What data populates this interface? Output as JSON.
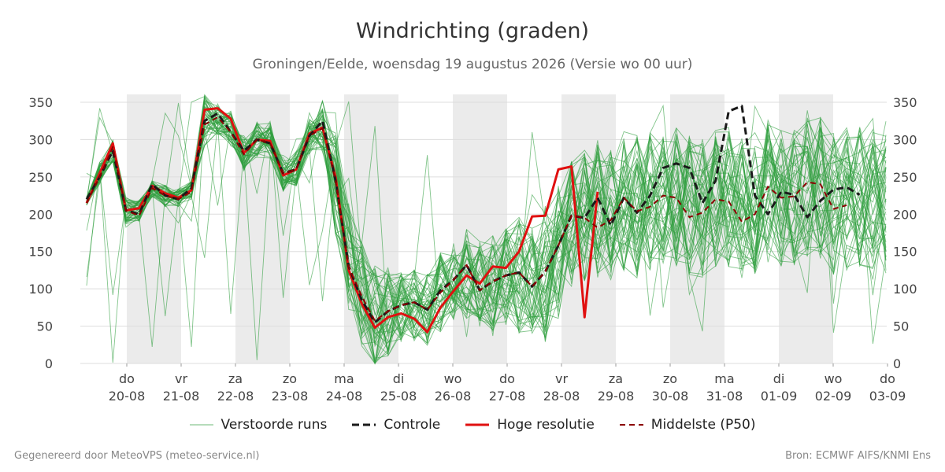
{
  "title": "Windrichting (graden)",
  "subtitle": "Groningen/Eelde, woensdag 19 augustus 2026 (Versie wo 00 uur)",
  "footer_left": "Gegenereerd door MeteoVPS (meteo-service.nl)",
  "footer_right": "Bron: ECMWF AIFS/KNMI Ens",
  "legend": [
    {
      "label": "Verstoorde runs",
      "color": "#2e9e3e",
      "style": "thin"
    },
    {
      "label": "Controle",
      "color": "#1a1a1a",
      "style": "dashed"
    },
    {
      "label": "Hoge resolutie",
      "color": "#e01010",
      "style": "solid"
    },
    {
      "label": "Middelste (P50)",
      "color": "#8b0000",
      "style": "dashed"
    }
  ],
  "chart_data": {
    "type": "line",
    "ylim": [
      0,
      360
    ],
    "yticks": [
      0,
      50,
      100,
      150,
      200,
      250,
      300,
      350
    ],
    "x_unit": "days since 19-08 00 uur",
    "xlim": [
      0,
      15.5
    ],
    "xticks": [
      {
        "day": "do",
        "date": "20-08"
      },
      {
        "day": "vr",
        "date": "21-08"
      },
      {
        "day": "za",
        "date": "22-08"
      },
      {
        "day": "zo",
        "date": "23-08"
      },
      {
        "day": "ma",
        "date": "24-08"
      },
      {
        "day": "di",
        "date": "25-08"
      },
      {
        "day": "wo",
        "date": "26-08"
      },
      {
        "day": "do",
        "date": "27-08"
      },
      {
        "day": "vr",
        "date": "28-08"
      },
      {
        "day": "za",
        "date": "29-08"
      },
      {
        "day": "zo",
        "date": "30-08"
      },
      {
        "day": "ma",
        "date": "31-08"
      },
      {
        "day": "di",
        "date": "01-09"
      },
      {
        "day": "wo",
        "date": "02-09"
      },
      {
        "day": "do",
        "date": "03-09"
      }
    ],
    "shaded_days": [
      "20-08",
      "22-08",
      "24-08",
      "26-08",
      "28-08",
      "30-08",
      "01-09"
    ],
    "series": [
      {
        "name": "Hoge resolutie",
        "color": "#e01010",
        "style": "solid",
        "x": [
          0.25,
          0.5,
          0.75,
          1,
          1.25,
          1.5,
          1.75,
          2,
          2.25,
          2.5,
          2.75,
          3,
          3.25,
          3.5,
          3.75,
          4,
          4.25,
          4.5,
          4.75,
          5,
          5.25,
          5.5,
          5.75,
          6,
          6.25,
          6.5,
          6.75,
          7,
          7.25,
          7.5,
          7.75,
          8,
          8.25,
          8.5,
          8.75,
          9,
          9.25,
          9.5,
          9.75,
          10,
          10.25
        ],
        "values": [
          215,
          255,
          295,
          205,
          208,
          238,
          228,
          222,
          232,
          340,
          342,
          328,
          282,
          300,
          298,
          252,
          260,
          308,
          316,
          250,
          125,
          80,
          48,
          62,
          67,
          60,
          42,
          75,
          97,
          118,
          107,
          130,
          128,
          150,
          197,
          198,
          260,
          264,
          62,
          230,
          null
        ]
      },
      {
        "name": "Controle",
        "color": "#1a1a1a",
        "style": "dashed",
        "x": [
          0.25,
          0.5,
          0.75,
          1,
          1.25,
          1.5,
          1.75,
          2,
          2.25,
          2.5,
          2.75,
          3,
          3.25,
          3.5,
          3.75,
          4,
          4.25,
          4.5,
          4.75,
          5,
          5.25,
          5.5,
          5.75,
          6,
          6.25,
          6.5,
          6.75,
          7,
          7.25,
          7.5,
          7.75,
          8,
          8.25,
          8.5,
          8.75,
          9,
          9.25,
          9.5,
          9.75,
          10,
          10.25,
          10.5,
          10.75,
          11,
          11.25,
          11.5,
          11.75,
          12,
          12.25,
          12.5,
          12.75,
          13,
          13.25,
          13.5,
          13.75,
          14,
          14.25,
          14.5,
          14.75,
          15,
          15.25,
          15.5
        ],
        "values": [
          220,
          250,
          285,
          205,
          200,
          240,
          225,
          220,
          235,
          325,
          335,
          310,
          285,
          300,
          295,
          255,
          260,
          305,
          325,
          245,
          130,
          85,
          55,
          70,
          78,
          82,
          72,
          98,
          112,
          132,
          98,
          110,
          118,
          122,
          103,
          123,
          158,
          198,
          195,
          222,
          185,
          222,
          202,
          225,
          262,
          268,
          262,
          215,
          245,
          338,
          345,
          225,
          200,
          230,
          226,
          196,
          218,
          233,
          236,
          226,
          null,
          null
        ]
      },
      {
        "name": "Middelste (P50)",
        "color": "#8b0000",
        "style": "dashed",
        "x": [
          0.25,
          0.5,
          0.75,
          1,
          1.25,
          1.5,
          1.75,
          2,
          2.25,
          2.5,
          2.75,
          3,
          3.25,
          3.5,
          3.75,
          4,
          4.25,
          4.5,
          4.75,
          5,
          5.25,
          5.5,
          5.75,
          6,
          6.25,
          6.5,
          6.75,
          7,
          7.25,
          7.5,
          7.75,
          8,
          8.25,
          8.5,
          8.75,
          9,
          9.25,
          9.5,
          9.75,
          10,
          10.25,
          10.5,
          10.75,
          11,
          11.25,
          11.5,
          11.75,
          12,
          12.25,
          12.5,
          12.75,
          13,
          13.25,
          13.5,
          13.75,
          14,
          14.25,
          14.5,
          14.75,
          15,
          15.25,
          15.5
        ],
        "values": [
          215,
          250,
          290,
          205,
          198,
          235,
          225,
          220,
          230,
          320,
          330,
          310,
          280,
          300,
          295,
          255,
          260,
          305,
          315,
          245,
          130,
          90,
          57,
          70,
          78,
          82,
          72,
          95,
          112,
          132,
          98,
          110,
          118,
          122,
          103,
          123,
          158,
          198,
          195,
          182,
          192,
          222,
          204,
          210,
          225,
          222,
          196,
          202,
          220,
          217,
          190,
          200,
          237,
          222,
          224,
          243,
          240,
          207,
          212,
          null,
          null,
          null
        ]
      }
    ],
    "ensemble": {
      "name": "Verstoorde runs",
      "color": "#2e9e3e",
      "members": 50,
      "x": [
        0.25,
        0.5,
        0.75,
        1,
        1.25,
        1.5,
        1.75,
        2,
        2.25,
        2.5,
        2.75,
        3,
        3.25,
        3.5,
        3.75,
        4,
        4.25,
        4.5,
        4.75,
        5,
        5.25,
        5.5,
        5.75,
        6,
        6.25,
        6.5,
        6.75,
        7,
        7.25,
        7.5,
        7.75,
        8,
        8.25,
        8.5,
        8.75,
        9,
        9.25,
        9.5,
        9.75,
        10,
        10.25,
        10.5,
        10.75,
        11,
        11.25,
        11.5,
        11.75,
        12,
        12.25,
        12.5,
        12.75,
        13,
        13.25,
        13.5,
        13.75,
        14,
        14.25,
        14.5,
        14.75,
        15,
        15.25,
        15.5
      ],
      "spread_center": [
        218,
        255,
        285,
        205,
        205,
        235,
        225,
        222,
        232,
        325,
        330,
        315,
        282,
        300,
        298,
        255,
        260,
        305,
        318,
        240,
        140,
        95,
        60,
        70,
        75,
        78,
        72,
        95,
        108,
        120,
        105,
        110,
        115,
        118,
        108,
        118,
        150,
        190,
        200,
        205,
        200,
        215,
        210,
        215,
        220,
        220,
        210,
        210,
        225,
        222,
        210,
        215,
        230,
        225,
        225,
        235,
        235,
        215,
        220,
        225,
        220,
        215
      ],
      "spread_width": [
        10,
        25,
        25,
        30,
        25,
        20,
        25,
        20,
        20,
        60,
        40,
        40,
        40,
        40,
        40,
        40,
        40,
        40,
        60,
        120,
        120,
        120,
        120,
        100,
        80,
        80,
        80,
        90,
        90,
        100,
        100,
        110,
        110,
        130,
        130,
        150,
        150,
        150,
        150,
        150,
        160,
        160,
        160,
        160,
        160,
        160,
        160,
        160,
        160,
        160,
        160,
        160,
        160,
        160,
        160,
        160,
        160,
        160,
        160,
        160,
        160,
        160
      ]
    }
  }
}
